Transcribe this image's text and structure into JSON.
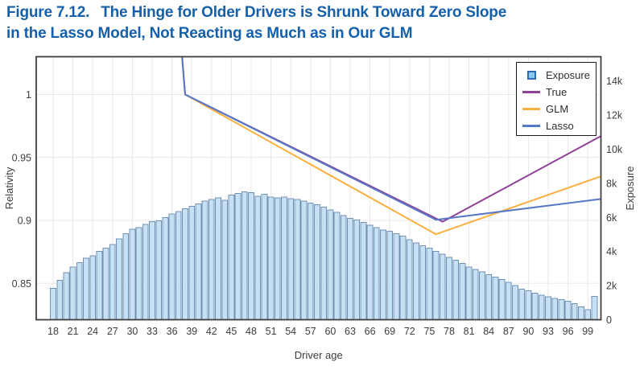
{
  "figure": {
    "label": "Figure 7.12.",
    "title_line1": "The Hinge for Older Drivers is Shrunk Toward Zero Slope",
    "title_line2": "in the Lasso Model, Not Reacting as Much as in Our GLM",
    "title_color": "#1560a8"
  },
  "chart_data": {
    "type": "bar+line",
    "xlabel": "Driver age",
    "ylabel_left": "Relativity",
    "ylabel_right": "Exposure",
    "x_range": [
      15.4,
      101.1
    ],
    "y_left_range": [
      0.821,
      1.03
    ],
    "y_right_range_thousands": [
      0,
      15.4
    ],
    "grid": true,
    "legend_position": "top-right",
    "x_ticks": [
      18,
      21,
      24,
      27,
      30,
      33,
      36,
      39,
      42,
      45,
      48,
      51,
      54,
      57,
      60,
      63,
      66,
      69,
      72,
      75,
      78,
      81,
      84,
      87,
      90,
      93,
      96,
      99
    ],
    "y_left_ticks": [
      {
        "v": 1,
        "label": "1"
      },
      {
        "v": 0.95,
        "label": "0.95"
      },
      {
        "v": 0.9,
        "label": "0.9"
      },
      {
        "v": 0.85,
        "label": "0.85"
      }
    ],
    "y_right_ticks": [
      {
        "v": 0,
        "label": "0"
      },
      {
        "v": 2,
        "label": "2k"
      },
      {
        "v": 4,
        "label": "4k"
      },
      {
        "v": 6,
        "label": "6k"
      },
      {
        "v": 8,
        "label": "8k"
      },
      {
        "v": 10,
        "label": "10k"
      },
      {
        "v": 12,
        "label": "12k"
      },
      {
        "v": 14,
        "label": "14k"
      }
    ],
    "bars": {
      "name": "Exposure",
      "age_start": 18,
      "unit": "thousands",
      "values": [
        1.85,
        2.3,
        2.75,
        3.1,
        3.35,
        3.6,
        3.75,
        4.0,
        4.2,
        4.4,
        4.75,
        5.05,
        5.3,
        5.4,
        5.6,
        5.75,
        5.8,
        6.0,
        6.2,
        6.35,
        6.5,
        6.65,
        6.8,
        6.95,
        7.05,
        7.15,
        7.0,
        7.3,
        7.4,
        7.5,
        7.45,
        7.25,
        7.35,
        7.2,
        7.15,
        7.2,
        7.1,
        7.05,
        6.95,
        6.85,
        6.75,
        6.6,
        6.45,
        6.3,
        6.1,
        5.95,
        5.85,
        5.7,
        5.55,
        5.4,
        5.25,
        5.2,
        5.05,
        4.9,
        4.7,
        4.5,
        4.35,
        4.2,
        4.0,
        3.85,
        3.65,
        3.5,
        3.3,
        3.1,
        2.95,
        2.8,
        2.65,
        2.5,
        2.35,
        2.2,
        2.0,
        1.8,
        1.7,
        1.55,
        1.45,
        1.35,
        1.25,
        1.18,
        1.08,
        0.95,
        0.75,
        0.6,
        1.37
      ]
    },
    "series": [
      {
        "name": "True",
        "color": "#8f4097",
        "points": [
          [
            37.55,
            1.03
          ],
          [
            38,
            1.0
          ],
          [
            77,
            0.899
          ],
          [
            101,
            0.967
          ]
        ]
      },
      {
        "name": "GLM",
        "color": "#fbaf3f",
        "points": [
          [
            37.57,
            1.03
          ],
          [
            38,
            1.0
          ],
          [
            76,
            0.889
          ],
          [
            101,
            0.935
          ]
        ]
      },
      {
        "name": "Lasso",
        "color": "#5678c8",
        "points": [
          [
            37.53,
            1.03
          ],
          [
            38,
            1.0
          ],
          [
            76,
            0.9005
          ],
          [
            101,
            0.917
          ]
        ]
      }
    ],
    "legend": {
      "items": [
        {
          "label": "Exposure",
          "type": "square",
          "fill": "#8ccaed",
          "stroke": "#2f6db0"
        },
        {
          "label": "True",
          "type": "line",
          "color": "#8f4097"
        },
        {
          "label": "GLM",
          "type": "line",
          "color": "#fbaf3f"
        },
        {
          "label": "Lasso",
          "type": "line",
          "color": "#5678c8"
        }
      ]
    },
    "colors": {
      "bar_fill": "#c7e1f4",
      "bar_stroke": "#7290b3",
      "grid": "#e8e8e8",
      "axis_border": "#3f3f3f",
      "tick_text": "#3d3d3d"
    }
  }
}
